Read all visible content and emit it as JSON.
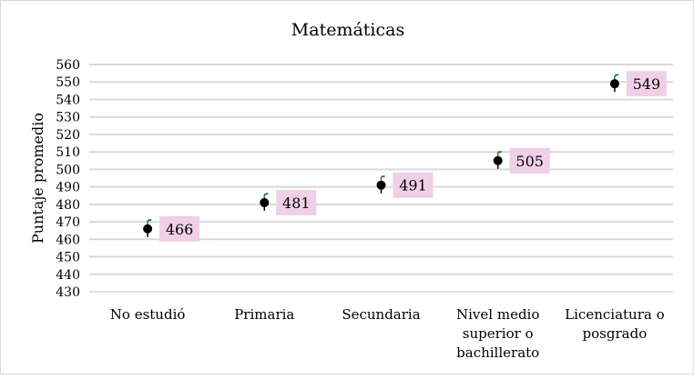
{
  "chart_data": {
    "type": "scatter",
    "title": "Matemáticas",
    "xlabel": "",
    "ylabel": "Puntaje promedio",
    "categories": [
      [
        "No estudió"
      ],
      [
        "Primaria"
      ],
      [
        "Secundaria"
      ],
      [
        "Nivel medio",
        "superior o",
        "bachillerato"
      ],
      [
        "Licenciatura o",
        "posgrado"
      ]
    ],
    "values": [
      466,
      481,
      491,
      505,
      549
    ],
    "data_labels": [
      "466",
      "481",
      "491",
      "505",
      "549"
    ],
    "ylim": [
      430,
      560
    ],
    "yticks": [
      430,
      440,
      450,
      460,
      470,
      480,
      490,
      500,
      510,
      520,
      530,
      540,
      550,
      560
    ],
    "grid": true,
    "legend": "none",
    "colors": {
      "marker": "#000000",
      "error_upper": "#2e7d32",
      "error_lower": "#000000",
      "label_bg": "#efd0e6",
      "grid": "#d9d9d9"
    }
  }
}
